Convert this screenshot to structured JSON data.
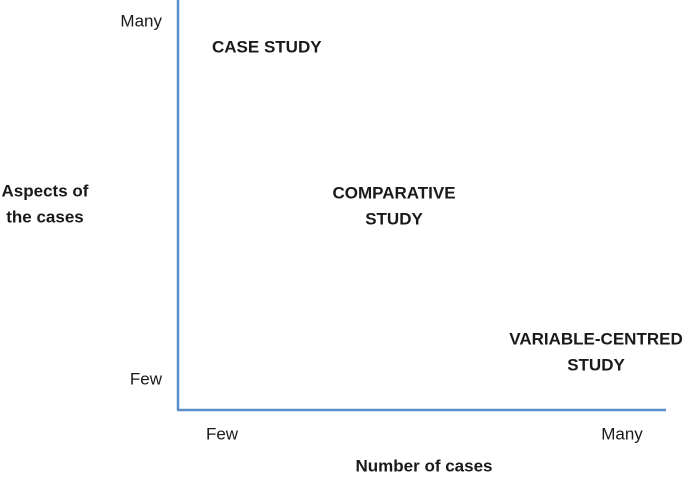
{
  "y_axis": {
    "label": [
      "Aspects of",
      "the cases"
    ],
    "high": "Many",
    "low": "Few"
  },
  "x_axis": {
    "label": "Number of cases",
    "low": "Few",
    "high": "Many"
  },
  "regions": [
    {
      "label": [
        "CASE STUDY"
      ]
    },
    {
      "label": [
        "COMPARATIVE",
        "STUDY"
      ]
    },
    {
      "label": [
        "VARIABLE-CENTRED",
        "STUDY"
      ]
    }
  ]
}
